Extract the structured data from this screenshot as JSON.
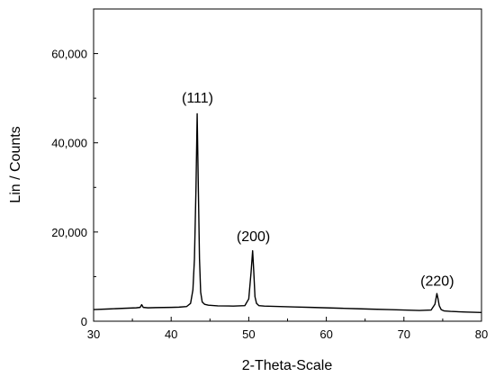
{
  "chart_data": {
    "type": "line",
    "title": "",
    "xlabel": "2-Theta-Scale",
    "ylabel": "Lin / Counts",
    "xlim": [
      30,
      80
    ],
    "ylim": [
      0,
      70000
    ],
    "x_ticks": [
      30,
      40,
      50,
      60,
      70,
      80
    ],
    "x_tick_labels": [
      "30",
      "40",
      "50",
      "60",
      "70",
      "80"
    ],
    "y_ticks": [
      0,
      20000,
      40000,
      60000
    ],
    "y_tick_labels": [
      "0",
      "20,000",
      "40,000",
      "60,000"
    ],
    "grid": false,
    "legend": "none",
    "line_color": "#000000",
    "series": [
      {
        "x": [
          30,
          32,
          34,
          35.5,
          36,
          36.2,
          36.4,
          37,
          38,
          40,
          41,
          42,
          42.5,
          42.8,
          43.0,
          43.2,
          43.35,
          43.5,
          43.65,
          43.8,
          44.0,
          44.3,
          44.8,
          46,
          48,
          49.5,
          50.0,
          50.3,
          50.5,
          50.65,
          50.8,
          51.0,
          51.3,
          52,
          54,
          56,
          58,
          60,
          62,
          64,
          66,
          68,
          70,
          72,
          73.5,
          74.0,
          74.25,
          74.4,
          74.55,
          74.8,
          75.2,
          76,
          78,
          80
        ],
        "y": [
          2600,
          2750,
          2900,
          3000,
          3100,
          3700,
          3100,
          3000,
          3050,
          3100,
          3150,
          3300,
          4000,
          7000,
          14000,
          30000,
          46500,
          30000,
          14000,
          6500,
          4300,
          3800,
          3600,
          3450,
          3400,
          3500,
          5000,
          11000,
          15800,
          11000,
          5500,
          4000,
          3500,
          3400,
          3300,
          3200,
          3100,
          3000,
          2900,
          2800,
          2700,
          2600,
          2500,
          2400,
          2500,
          3800,
          6200,
          5000,
          3500,
          2600,
          2300,
          2200,
          2050,
          1950
        ]
      }
    ],
    "annotations": [
      {
        "text": "(111)",
        "x": 43.4,
        "y": 49000
      },
      {
        "text": "(200)",
        "x": 50.6,
        "y": 18000
      },
      {
        "text": "(220)",
        "x": 74.3,
        "y": 8000
      }
    ]
  }
}
